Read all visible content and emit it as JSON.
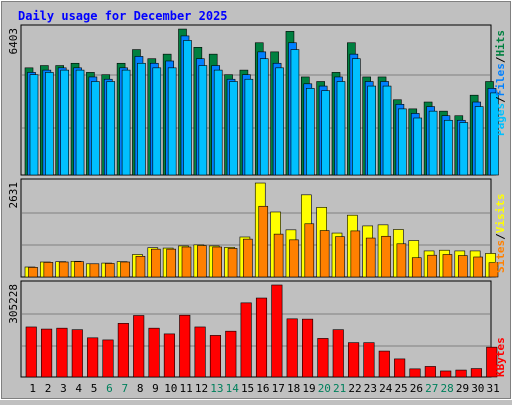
{
  "chart_data": [
    {
      "type": "bar",
      "title": "Daily usage for December 2025",
      "colors": {
        "hits": "#008040",
        "files": "#0080ff",
        "pages": "#00c0ff"
      },
      "ylabel_max": "6403",
      "legend": [
        {
          "text": "Pages",
          "color": "#00c0ff"
        },
        {
          "text": "/",
          "color": "#000000"
        },
        {
          "text": "Files",
          "color": "#0080ff"
        },
        {
          "text": "/",
          "color": "#000000"
        },
        {
          "text": "Hits",
          "color": "#008040"
        }
      ],
      "ylim": [
        0,
        6403
      ],
      "series": [
        {
          "name": "Hits",
          "values": [
            4700,
            4800,
            4800,
            4900,
            4500,
            4400,
            4900,
            5500,
            5100,
            5300,
            6400,
            5600,
            5300,
            4400,
            4600,
            5800,
            5400,
            6300,
            4300,
            4100,
            4500,
            5800,
            4300,
            4300,
            3300,
            2900,
            3200,
            2800,
            2600,
            3500,
            4100
          ]
        },
        {
          "name": "Files",
          "values": [
            4500,
            4600,
            4700,
            4700,
            4300,
            4200,
            4700,
            5200,
            4900,
            5000,
            6100,
            5100,
            4800,
            4200,
            4400,
            5400,
            4900,
            5800,
            4000,
            3900,
            4300,
            5300,
            4100,
            4100,
            3100,
            2700,
            3000,
            2600,
            2400,
            3200,
            3800
          ]
        },
        {
          "name": "Pages",
          "values": [
            4400,
            4500,
            4600,
            4600,
            4100,
            4100,
            4600,
            4900,
            4700,
            4700,
            5900,
            4800,
            4600,
            4100,
            4200,
            5100,
            4700,
            5500,
            3800,
            3700,
            4100,
            5100,
            3900,
            3900,
            2900,
            2500,
            2800,
            2400,
            2300,
            3000,
            3600
          ]
        }
      ]
    },
    {
      "type": "bar",
      "colors": {
        "visits": "#ffff00",
        "sites": "#ff8000"
      },
      "ylabel_max": "2631",
      "legend": [
        {
          "text": "Sites",
          "color": "#ff8000"
        },
        {
          "text": "/",
          "color": "#000000"
        },
        {
          "text": "Visits",
          "color": "#ffff00"
        }
      ],
      "ylim": [
        0,
        2631
      ],
      "series": [
        {
          "name": "Visits",
          "values": [
            280,
            420,
            430,
            440,
            370,
            390,
            430,
            630,
            820,
            810,
            870,
            900,
            870,
            830,
            1120,
            2630,
            1820,
            1320,
            2300,
            1950,
            1230,
            1730,
            1430,
            1460,
            1330,
            1020,
            730,
            750,
            730,
            730,
            660
          ]
        },
        {
          "name": "Sites",
          "values": [
            270,
            410,
            420,
            430,
            370,
            380,
            420,
            580,
            780,
            780,
            840,
            880,
            840,
            800,
            1060,
            1980,
            1200,
            1040,
            1490,
            1300,
            1130,
            1290,
            1090,
            1140,
            930,
            540,
            610,
            630,
            600,
            560,
            400
          ]
        }
      ]
    },
    {
      "type": "bar",
      "colors": {
        "kbytes": "#ff0000"
      },
      "ylabel_max": "305228",
      "legend": [
        {
          "text": "KBytes",
          "color": "#ff0000"
        }
      ],
      "ylim": [
        0,
        305228
      ],
      "series": [
        {
          "name": "KBytes",
          "values": [
            166000,
            159000,
            162000,
            157000,
            130000,
            123000,
            178000,
            204000,
            162000,
            143000,
            205000,
            166000,
            138000,
            152000,
            246000,
            262000,
            305228,
            193000,
            192000,
            128000,
            157000,
            114000,
            114000,
            86000,
            60000,
            27000,
            35000,
            20000,
            23000,
            28000,
            99000
          ]
        }
      ]
    }
  ],
  "x_labels": [
    "1",
    "2",
    "3",
    "4",
    "5",
    "6",
    "7",
    "8",
    "9",
    "10",
    "11",
    "12",
    "13",
    "14",
    "15",
    "16",
    "17",
    "18",
    "19",
    "20",
    "21",
    "22",
    "23",
    "24",
    "25",
    "26",
    "27",
    "28",
    "29",
    "30",
    "31"
  ],
  "x_label_colors": {
    "weekday": "#000000",
    "weekend": "#00805c"
  },
  "weekend_days": [
    6,
    7,
    13,
    14,
    20,
    21,
    27,
    28
  ],
  "title_color": "#0000ff"
}
